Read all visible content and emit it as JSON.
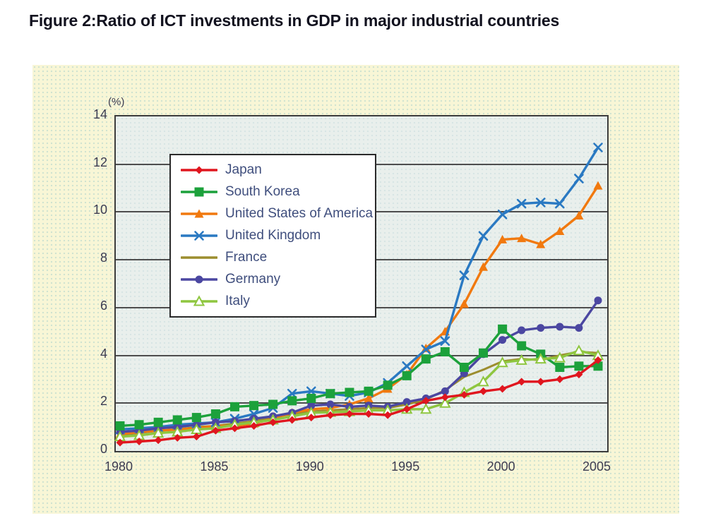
{
  "page": {
    "title": "Figure 2:Ratio of ICT investments in GDP in major industrial countries"
  },
  "chart_data": {
    "type": "line",
    "title": "Figure 2:Ratio of ICT investments in GDP in major industrial countries",
    "unit_label": "(%)",
    "x": [
      1980,
      1981,
      1982,
      1983,
      1984,
      1985,
      1986,
      1987,
      1988,
      1989,
      1990,
      1991,
      1992,
      1993,
      1994,
      1995,
      1996,
      1997,
      1998,
      1999,
      2000,
      2001,
      2002,
      2003,
      2004,
      2005
    ],
    "x_tick_labels": [
      "1980",
      "1985",
      "1990",
      "1995",
      "2000",
      "2005"
    ],
    "y_ticks": [
      0,
      2,
      4,
      6,
      8,
      10,
      12,
      14
    ],
    "ylim": [
      0,
      14
    ],
    "grid": "horizontal",
    "legend_position": "upper-left-inside",
    "plot_background": "#e9efec",
    "panel_background": "#f8f6d6",
    "draw_order": [
      4,
      2,
      3,
      5,
      1,
      6,
      0
    ],
    "series": [
      {
        "name": "Japan",
        "color": "#e0161f",
        "marker": "diamond",
        "values": [
          0.35,
          0.4,
          0.45,
          0.55,
          0.6,
          0.85,
          0.95,
          1.05,
          1.2,
          1.3,
          1.4,
          1.5,
          1.55,
          1.55,
          1.5,
          1.75,
          2.1,
          2.25,
          2.35,
          2.5,
          2.6,
          2.9,
          2.9,
          3.0,
          3.2,
          3.8
        ]
      },
      {
        "name": "South Korea",
        "color": "#1ca13b",
        "marker": "square",
        "values": [
          1.05,
          1.1,
          1.2,
          1.3,
          1.4,
          1.55,
          1.85,
          1.9,
          1.95,
          2.1,
          2.2,
          2.4,
          2.45,
          2.5,
          2.75,
          3.15,
          3.85,
          4.15,
          3.5,
          4.1,
          5.1,
          4.4,
          4.05,
          3.5,
          3.55,
          3.55
        ]
      },
      {
        "name": "United States of America",
        "color": "#f1790f",
        "marker": "triangle",
        "values": [
          0.7,
          0.8,
          0.85,
          0.9,
          0.95,
          1.05,
          1.05,
          1.15,
          1.35,
          1.6,
          1.75,
          1.8,
          1.95,
          2.2,
          2.6,
          3.2,
          4.3,
          5.0,
          6.15,
          7.7,
          8.85,
          8.9,
          8.65,
          9.2,
          9.85,
          11.1
        ]
      },
      {
        "name": "United Kingdom",
        "color": "#2a79c2",
        "marker": "x",
        "values": [
          0.9,
          0.95,
          1.0,
          1.1,
          1.15,
          1.2,
          1.35,
          1.55,
          1.8,
          2.4,
          2.5,
          2.4,
          2.3,
          2.45,
          2.85,
          3.55,
          4.25,
          4.6,
          7.35,
          9.0,
          9.9,
          10.35,
          10.4,
          10.35,
          11.4,
          12.7
        ]
      },
      {
        "name": "France",
        "color": "#9c8d2e",
        "marker": "none",
        "values": [
          0.68,
          0.75,
          0.85,
          0.9,
          1.0,
          1.05,
          1.15,
          1.25,
          1.4,
          1.55,
          1.65,
          1.7,
          1.75,
          1.8,
          1.8,
          1.95,
          2.15,
          2.55,
          3.1,
          3.4,
          3.75,
          3.85,
          3.8,
          4.0,
          4.15,
          4.1
        ]
      },
      {
        "name": "Germany",
        "color": "#4b47a1",
        "marker": "circle",
        "values": [
          0.8,
          0.85,
          0.95,
          1.0,
          1.1,
          1.2,
          1.25,
          1.35,
          1.45,
          1.6,
          1.9,
          1.95,
          1.85,
          1.9,
          1.85,
          2.05,
          2.2,
          2.5,
          3.25,
          4.05,
          4.65,
          5.05,
          5.15,
          5.2,
          5.15,
          6.3
        ]
      },
      {
        "name": "Italy",
        "color": "#8ec63f",
        "marker": "triangle-open",
        "values": [
          0.6,
          0.65,
          0.75,
          0.8,
          0.9,
          0.95,
          1.1,
          1.2,
          1.3,
          1.45,
          1.6,
          1.62,
          1.65,
          1.7,
          1.7,
          1.75,
          1.75,
          2.0,
          2.45,
          2.9,
          3.7,
          3.8,
          3.85,
          3.9,
          4.2,
          4.0
        ]
      }
    ]
  }
}
